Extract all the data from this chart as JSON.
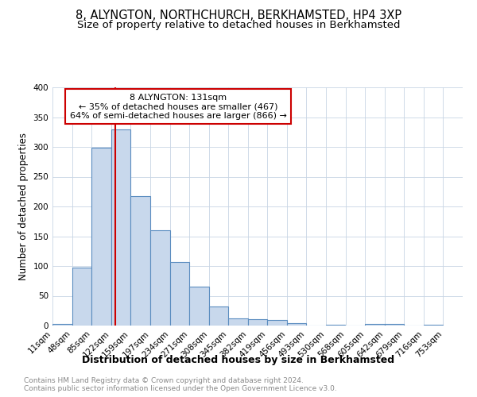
{
  "title": "8, ALYNGTON, NORTHCHURCH, BERKHAMSTED, HP4 3XP",
  "subtitle": "Size of property relative to detached houses in Berkhamsted",
  "xlabel": "Distribution of detached houses by size in Berkhamsted",
  "ylabel": "Number of detached properties",
  "bar_color": "#c8d8ec",
  "bar_edge_color": "#5b8dc0",
  "grid_color": "#c8d4e4",
  "background_color": "#ffffff",
  "red_line_color": "#cc0000",
  "annotation_box_color": "#cc0000",
  "bins": [
    11,
    48,
    85,
    122,
    159,
    197,
    234,
    271,
    308,
    345,
    382,
    419,
    456,
    493,
    530,
    568,
    605,
    642,
    679,
    716,
    753
  ],
  "counts": [
    3,
    98,
    299,
    330,
    218,
    160,
    107,
    65,
    32,
    12,
    11,
    10,
    4,
    0,
    1,
    0,
    3,
    3,
    0,
    2
  ],
  "property_size": 131,
  "annotation_line1": "8 ALYNGTON: 131sqm",
  "annotation_line2": "← 35% of detached houses are smaller (467)",
  "annotation_line3": "64% of semi-detached houses are larger (866) →",
  "footnote1": "Contains HM Land Registry data © Crown copyright and database right 2024.",
  "footnote2": "Contains public sector information licensed under the Open Government Licence v3.0.",
  "ylim": [
    0,
    400
  ],
  "yticks": [
    0,
    50,
    100,
    150,
    200,
    250,
    300,
    350,
    400
  ],
  "title_fontsize": 10.5,
  "subtitle_fontsize": 9.5,
  "ylabel_fontsize": 8.5,
  "xlabel_fontsize": 9,
  "tick_fontsize": 7.5,
  "footnote_fontsize": 6.5,
  "annotation_fontsize": 8
}
